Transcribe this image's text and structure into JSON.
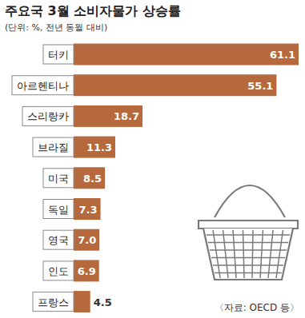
{
  "chart_data": {
    "type": "bar",
    "orientation": "horizontal",
    "title": "주요국 3월 소비자물가 상승률",
    "subtitle": "(단위: %, 전년 동월 대비)",
    "source": "〈자료: OECD 등〉",
    "categories": [
      "터키",
      "아르헨티나",
      "스리랑카",
      "브라질",
      "미국",
      "독일",
      "영국",
      "인도",
      "프랑스"
    ],
    "values": [
      61.1,
      55.1,
      18.7,
      11.3,
      8.5,
      7.3,
      7.0,
      6.9,
      4.5
    ],
    "value_labels": [
      "61.1",
      "55.1",
      "18.7",
      "11.3",
      "8.5",
      "7.3",
      "7.0",
      "6.9",
      "4.5"
    ],
    "color": "#b5693c",
    "xlim": [
      0,
      61.1
    ],
    "data_labels": true,
    "tick_labels": false,
    "grid": false
  }
}
